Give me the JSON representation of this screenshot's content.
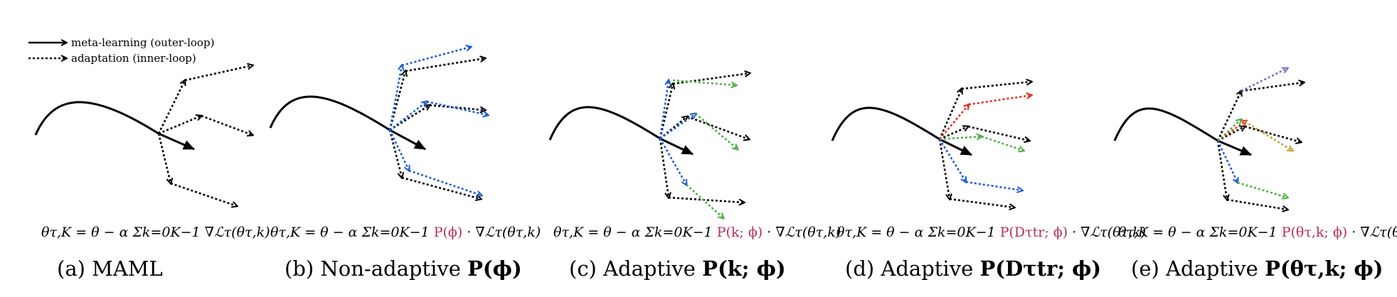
{
  "legend": {
    "outer_label": "meta-learning (outer-loop)",
    "inner_label": "adaptation (inner-loop)"
  },
  "colors": {
    "black": "#000000",
    "blue": "#1f5bd6",
    "green": "#4fb043",
    "red": "#e0331f",
    "purple": "#7a6bc9",
    "gold": "#c9a227",
    "highlight": "#b5305f"
  },
  "panels": [
    {
      "equation": {
        "prefix": "θτ,K = θ − α Σk=0K−1 ",
        "highlight": "",
        "suffix": "∇ℒτ(θτ,k)"
      },
      "caption": {
        "text": "(a) MAML",
        "math": ""
      }
    },
    {
      "equation": {
        "prefix": "θτ,K = θ − α Σk=0K−1 ",
        "highlight": "P(ϕ)",
        "suffix": " · ∇ℒτ(θτ,k)"
      },
      "caption": {
        "text": "(b) Non-adaptive ",
        "math": "P(ϕ)"
      }
    },
    {
      "equation": {
        "prefix": "θτ,K = θ − α Σk=0K−1 ",
        "highlight": "P(k; ϕ)",
        "suffix": " · ∇ℒτ(θτ,k)"
      },
      "caption": {
        "text": "(c) Adaptive ",
        "math": "P(k; ϕ)"
      }
    },
    {
      "equation": {
        "prefix": "θτ,K = θ − α Σk=0K−1 ",
        "highlight": "P(Dτtr; ϕ)",
        "suffix": " · ∇ℒτ(θτ,k)"
      },
      "caption": {
        "text": "(d) Adaptive ",
        "math": "P(Dτtr; ϕ)"
      }
    },
    {
      "equation": {
        "prefix": "θτ,K = θ − α Σk=0K−1 ",
        "highlight": "P(θτ,k; ϕ)",
        "suffix": " · ∇ℒτ(θτ,k)"
      },
      "caption": {
        "text": "(e) Adaptive ",
        "math": "P(θτ,k; ϕ)"
      }
    }
  ]
}
